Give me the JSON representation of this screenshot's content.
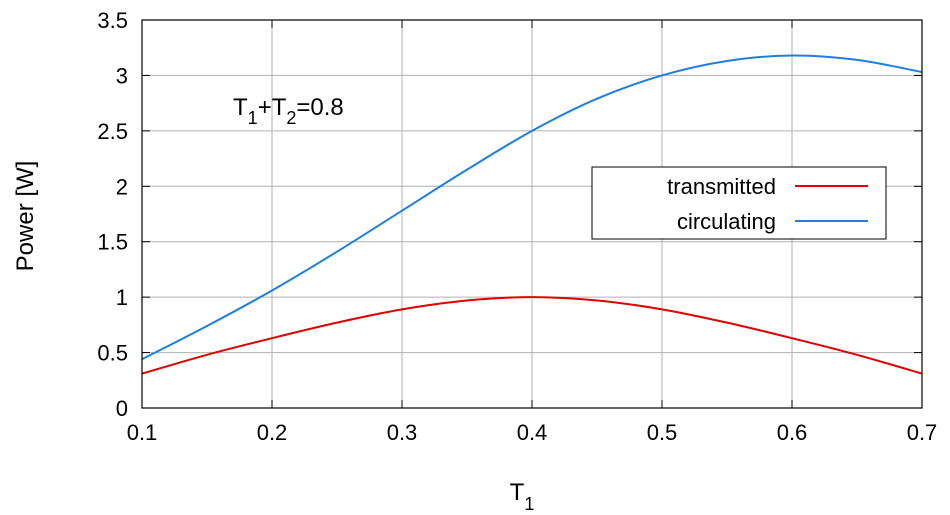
{
  "chart_data": {
    "type": "line",
    "title": "",
    "xlabel": "T",
    "xlabel_sub": "1",
    "ylabel": "Power [W]",
    "xlim": [
      0.1,
      0.7
    ],
    "ylim": [
      0,
      3.5
    ],
    "x_ticks": [
      0.1,
      0.2,
      0.3,
      0.4,
      0.5,
      0.6,
      0.7
    ],
    "x_tick_labels": [
      "0.1",
      "0.2",
      "0.3",
      "0.4",
      "0.5",
      "0.6",
      "0.7"
    ],
    "y_ticks": [
      0,
      0.5,
      1,
      1.5,
      2,
      2.5,
      3,
      3.5
    ],
    "y_tick_labels": [
      "0",
      "0.5",
      "1",
      "1.5",
      "2",
      "2.5",
      "3",
      "3.5"
    ],
    "grid": true,
    "legend_position": "center-right",
    "annotation": {
      "parts": [
        {
          "text": "T",
          "sub": false
        },
        {
          "text": "1",
          "sub": true
        },
        {
          "text": "+T",
          "sub": false
        },
        {
          "text": "2",
          "sub": true
        },
        {
          "text": "=0.8",
          "sub": false
        }
      ]
    },
    "x": [
      0.1,
      0.15,
      0.2,
      0.25,
      0.3,
      0.35,
      0.4,
      0.45,
      0.5,
      0.55,
      0.6,
      0.65,
      0.7
    ],
    "series": [
      {
        "name": "transmitted",
        "color": "#e00000",
        "values": [
          0.31,
          0.48,
          0.63,
          0.77,
          0.89,
          0.97,
          1.0,
          0.97,
          0.89,
          0.77,
          0.63,
          0.48,
          0.31
        ]
      },
      {
        "name": "circulating",
        "color": "#1e7fe0",
        "values": [
          0.44,
          0.74,
          1.06,
          1.41,
          1.78,
          2.15,
          2.5,
          2.79,
          3.0,
          3.13,
          3.18,
          3.14,
          3.03
        ]
      }
    ]
  }
}
